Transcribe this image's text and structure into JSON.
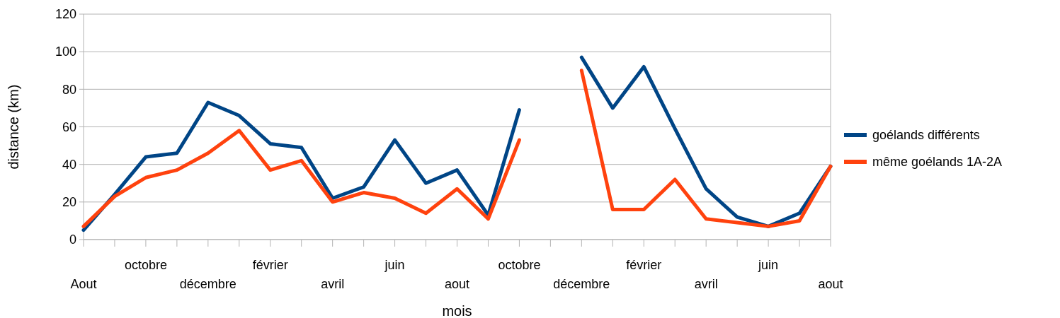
{
  "chart_data": {
    "type": "line",
    "xlabel": "mois",
    "ylabel": "distance (km)",
    "categories": [
      "Aout",
      null,
      "octobre",
      null,
      "décembre",
      null,
      "février",
      null,
      "avril",
      null,
      "juin",
      null,
      "aout",
      null,
      "octobre",
      null,
      "décembre",
      null,
      "février",
      null,
      "avril",
      null,
      "juin",
      null,
      "aout"
    ],
    "series": [
      {
        "name": "goélands différents",
        "color": "#004586",
        "values": [
          5,
          24,
          44,
          46,
          73,
          66,
          51,
          49,
          22,
          28,
          53,
          30,
          37,
          13,
          69,
          null,
          97,
          70,
          92,
          59,
          27,
          12,
          7,
          14,
          39
        ]
      },
      {
        "name": "même goélands 1A-2A",
        "color": "#ff420e",
        "values": [
          7,
          23,
          33,
          37,
          46,
          58,
          37,
          42,
          20,
          25,
          22,
          14,
          27,
          11,
          53,
          null,
          90,
          16,
          16,
          32,
          11,
          9,
          7,
          10,
          39
        ]
      }
    ],
    "ylim": [
      0,
      120
    ],
    "yticks": [
      0,
      20,
      40,
      60,
      80,
      100,
      120
    ],
    "grid": "y",
    "legend": "right",
    "marker": "none",
    "line_style": "solid"
  }
}
